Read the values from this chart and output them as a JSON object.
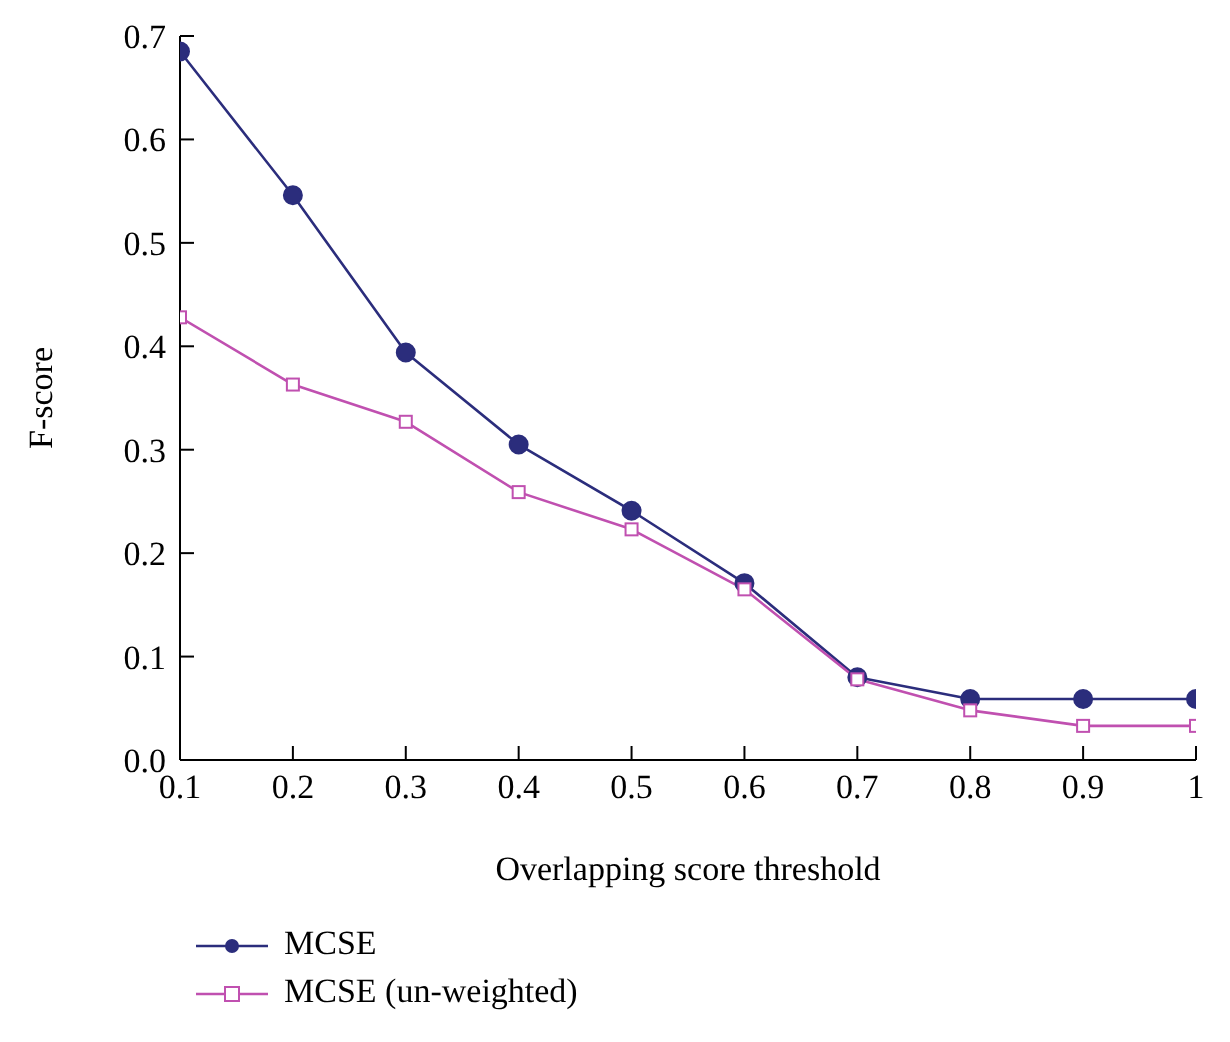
{
  "chart_data": {
    "type": "line",
    "xlabel": "Overlapping score threshold",
    "ylabel": "F-score",
    "x": [
      0.1,
      0.2,
      0.3,
      0.4,
      0.5,
      0.6,
      0.7,
      0.8,
      0.9,
      1
    ],
    "series": [
      {
        "name": "MCSE",
        "color": "#2b2d7c",
        "marker": "circle",
        "values": [
          0.685,
          0.546,
          0.394,
          0.305,
          0.241,
          0.171,
          0.08,
          0.059,
          0.059,
          0.059
        ]
      },
      {
        "name": "MCSE (un-weighted)",
        "color": "#c050b0",
        "marker": "square",
        "values": [
          0.428,
          0.363,
          0.327,
          0.259,
          0.223,
          0.165,
          0.078,
          0.048,
          0.033,
          0.033
        ]
      }
    ],
    "xlim": [
      0.1,
      1
    ],
    "xticks": [
      0.1,
      0.2,
      0.3,
      0.4,
      0.5,
      0.6,
      0.7,
      0.8,
      0.9,
      1
    ],
    "ylim": [
      0,
      0.7
    ],
    "yticks": [
      {
        "value": 0,
        "label": "0.0"
      },
      0.1,
      0.2,
      0.3,
      0.4,
      0.5,
      0.6,
      0.7
    ],
    "grid": false,
    "legend": "bottom left"
  }
}
